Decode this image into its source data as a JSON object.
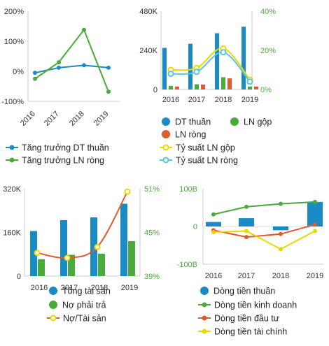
{
  "chart_data": [
    {
      "type": "line",
      "categories": [
        "2016",
        "2017",
        "2018",
        "2019"
      ],
      "ylim": [
        -100,
        200
      ],
      "y_ticks": [
        "200%",
        "100%",
        "0%",
        "-100%"
      ],
      "series": [
        {
          "name": "Tăng trưởng DT thuần",
          "values": [
            -5,
            12,
            20,
            12
          ],
          "color": "#1a8bc4"
        },
        {
          "name": "Tăng trưởng LN ròng",
          "values": [
            -25,
            30,
            138,
            -68
          ],
          "color": "#4aaa3a"
        }
      ]
    },
    {
      "type": "bar+line",
      "categories": [
        "2016",
        "2017",
        "2018",
        "2019"
      ],
      "ylim_left": [
        0,
        480
      ],
      "ylim_right": [
        0,
        40
      ],
      "y_ticks_left": [
        "480K",
        "240K",
        "0"
      ],
      "y_ticks_right": [
        "40%",
        "20%",
        "0%"
      ],
      "bar_series": [
        {
          "name": "DT thuần",
          "values": [
            255,
            280,
            345,
            385
          ],
          "color": "#1a8bc4"
        },
        {
          "name": "LN gộp",
          "values": [
            22,
            32,
            75,
            18
          ],
          "color": "#4aaa3a"
        },
        {
          "name": "LN ròng",
          "values": [
            18,
            30,
            68,
            18
          ],
          "color": "#e05a2b"
        }
      ],
      "line_series": [
        {
          "name": "Tỷ suất LN gộp",
          "values": [
            10,
            11,
            21,
            5
          ],
          "color": "#e8d800"
        },
        {
          "name": "Tỷ suất LN ròng",
          "values": [
            8,
            9,
            19,
            4
          ],
          "color": "#56c6e8"
        }
      ]
    },
    {
      "type": "bar+line",
      "categories": [
        "2016",
        "2017",
        "2018",
        "2019"
      ],
      "ylim_left": [
        0,
        320
      ],
      "ylim_right": [
        39,
        51
      ],
      "y_ticks_left": [
        "320K",
        "160K",
        "0"
      ],
      "y_ticks_right": [
        "51%",
        "45%",
        "39%"
      ],
      "bar_series": [
        {
          "name": "Tổng tài sản",
          "values": [
            165,
            205,
            215,
            265
          ],
          "color": "#1a8bc4"
        },
        {
          "name": "Nợ phải trả",
          "values": [
            62,
            78,
            82,
            128
          ],
          "color": "#4aaa3a"
        }
      ],
      "line_series": [
        {
          "name": "Nợ/Tài sản",
          "values": [
            42.2,
            41.5,
            43.0,
            50.6
          ],
          "color": "#e05a2b"
        }
      ]
    },
    {
      "type": "bar+line",
      "categories": [
        "2016",
        "2017",
        "2018",
        "2019"
      ],
      "ylim": [
        -100,
        100
      ],
      "y_ticks": [
        "100B",
        "0",
        "-100B"
      ],
      "bar_series": [
        {
          "name": "Dòng tiền thuần",
          "values": [
            12,
            22,
            -10,
            65
          ],
          "color": "#1a8bc4"
        }
      ],
      "line_series": [
        {
          "name": "Dòng tiền kinh doanh",
          "values": [
            32,
            52,
            60,
            65
          ],
          "color": "#4aaa3a"
        },
        {
          "name": "Dòng tiền đầu tư",
          "values": [
            -10,
            -28,
            -20,
            5
          ],
          "color": "#e05a2b"
        },
        {
          "name": "Dòng tiền tài chính",
          "values": [
            -15,
            -12,
            -60,
            -12
          ],
          "color": "#e8d800"
        }
      ]
    }
  ]
}
